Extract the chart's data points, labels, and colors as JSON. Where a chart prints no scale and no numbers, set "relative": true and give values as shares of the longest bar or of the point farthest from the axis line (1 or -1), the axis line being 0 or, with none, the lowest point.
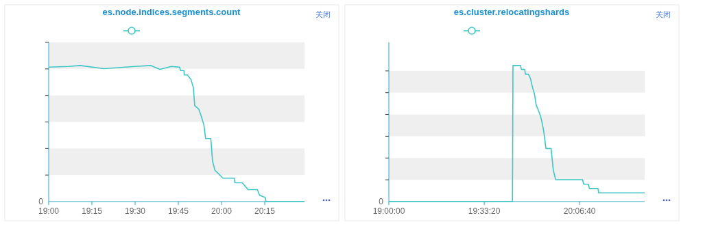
{
  "chart_data": [
    {
      "type": "line",
      "title": "es.node.indices.segments.count",
      "relative": true,
      "marker": "none",
      "xlim": [
        19,
        20.48
      ],
      "xticks": [
        {
          "value": 19,
          "label": "19:00"
        },
        {
          "value": 19.25,
          "label": "19:15"
        },
        {
          "value": 19.5,
          "label": "19:30"
        },
        {
          "value": 19.75,
          "label": "19:45"
        },
        {
          "value": 20,
          "label": "20:00"
        },
        {
          "value": 20.25,
          "label": "20:15"
        }
      ],
      "annotations": [
        "关闭",
        "0"
      ],
      "bands": [
        {
          "axis": "y",
          "from": 0.195,
          "to": 0.39,
          "color": "#efefef"
        },
        {
          "axis": "y",
          "from": 0.585,
          "to": 0.78,
          "color": "#efefef"
        },
        {
          "axis": "y",
          "from": 0.975,
          "to": 1.17,
          "color": "#efefef"
        }
      ],
      "series": [
        {
          "color": "#3ec6c6",
          "x": [
            19.0,
            19.115,
            19.182,
            19.32,
            19.498,
            19.59,
            19.643,
            19.71,
            19.757,
            19.763,
            19.783,
            19.784,
            19.803,
            19.823,
            19.837,
            19.845,
            19.868,
            19.882,
            19.898,
            19.908,
            19.938,
            19.948,
            19.962,
            19.982,
            20.008,
            20.073,
            20.078,
            20.12,
            20.153,
            20.207,
            20.22,
            20.253,
            20.257,
            20.48
          ],
          "values": [
            0.988,
            0.993,
            1.0,
            0.977,
            0.993,
            1.0,
            0.972,
            0.993,
            0.988,
            0.963,
            0.963,
            0.93,
            0.93,
            0.897,
            0.838,
            0.705,
            0.68,
            0.63,
            0.563,
            0.463,
            0.463,
            0.297,
            0.23,
            0.205,
            0.172,
            0.172,
            0.138,
            0.138,
            0.088,
            0.088,
            0.047,
            0.03,
            0,
            0
          ]
        }
      ]
    },
    {
      "type": "line",
      "title": "es.cluster.relocatingshards",
      "relative": true,
      "marker": "none",
      "xlim": [
        19,
        20.49
      ],
      "xticks": [
        {
          "value": 19,
          "label": "19:00:00"
        },
        {
          "value": 19.5556,
          "label": "19:33:20"
        },
        {
          "value": 20.1111,
          "label": "20:06:40"
        }
      ],
      "annotations": [
        "关闭",
        "0"
      ],
      "bands": [
        {
          "axis": "y",
          "from": 0.16,
          "to": 0.32,
          "color": "#efefef"
        },
        {
          "axis": "y",
          "from": 0.48,
          "to": 0.64,
          "color": "#efefef"
        },
        {
          "axis": "y",
          "from": 0.8,
          "to": 0.96,
          "color": "#efefef"
        }
      ],
      "series": [
        {
          "color": "#3ec6c6",
          "x": [
            19.0,
            19.72,
            19.723,
            19.767,
            19.772,
            19.792,
            19.795,
            19.813,
            19.825,
            19.835,
            19.848,
            19.858,
            19.868,
            19.883,
            19.892,
            19.902,
            19.915,
            19.945,
            19.958,
            19.972,
            20.128,
            20.135,
            20.162,
            20.168,
            20.218,
            20.222,
            20.49
          ],
          "values": [
            0,
            0,
            1,
            1,
            0.971,
            0.971,
            0.936,
            0.936,
            0.904,
            0.848,
            0.791,
            0.711,
            0.679,
            0.631,
            0.583,
            0.518,
            0.39,
            0.39,
            0.23,
            0.161,
            0.161,
            0.128,
            0.128,
            0.096,
            0.096,
            0.064,
            0.064
          ]
        }
      ]
    }
  ]
}
